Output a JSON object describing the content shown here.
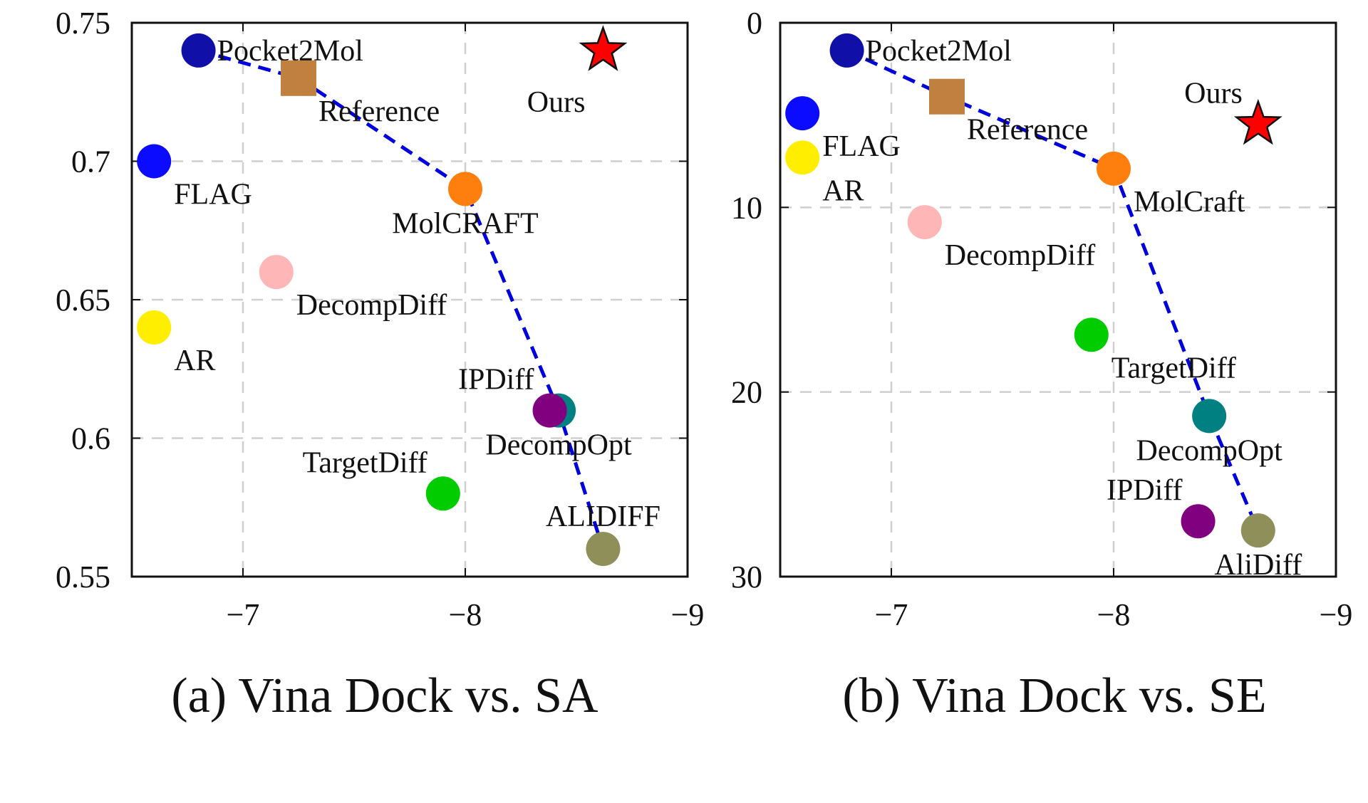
{
  "chart_data": [
    {
      "type": "scatter",
      "caption": "(a) Vina Dock vs. SA",
      "xlim": [
        -6.5,
        -9
      ],
      "ylim": [
        0.55,
        0.75
      ],
      "x_ticks": [
        -7,
        -8,
        -9
      ],
      "x_tick_labels": [
        "−7",
        "−8",
        "−9"
      ],
      "y_ticks": [
        0.55,
        0.6,
        0.65,
        0.7,
        0.75
      ],
      "y_tick_labels": [
        "0.55",
        "0.6",
        "0.65",
        "0.7",
        "0.75"
      ],
      "grid": true,
      "points": [
        {
          "label": "Pocket2Mol",
          "x": -6.8,
          "y": 0.74,
          "color": "#1010a8",
          "shape": "circle",
          "label_pos": "right"
        },
        {
          "label": "Reference",
          "x": -7.25,
          "y": 0.73,
          "color": "#c08040",
          "shape": "square",
          "label_pos": "below-right"
        },
        {
          "label": "Ours",
          "x": -8.62,
          "y": 0.74,
          "color": "#ff0000",
          "shape": "star",
          "label_pos": "below-left"
        },
        {
          "label": "FLAG",
          "x": -6.6,
          "y": 0.7,
          "color": "#0b0bff",
          "shape": "circle",
          "label_pos": "below-right"
        },
        {
          "label": "MolCRAFT",
          "x": -8.0,
          "y": 0.69,
          "color": "#ff7f0e",
          "shape": "circle",
          "label_pos": "below"
        },
        {
          "label": "DecompDiff",
          "x": -7.15,
          "y": 0.66,
          "color": "#ffb6b6",
          "shape": "circle",
          "label_pos": "below-right"
        },
        {
          "label": "AR",
          "x": -6.6,
          "y": 0.64,
          "color": "#ffee00",
          "shape": "circle",
          "label_pos": "below-right"
        },
        {
          "label": "DecompOpt",
          "x": -8.42,
          "y": 0.61,
          "color": "#008080",
          "shape": "circle",
          "label_pos": "below"
        },
        {
          "label": "IPDiff",
          "x": -8.38,
          "y": 0.61,
          "color": "#800080",
          "shape": "circle",
          "label_pos": "above-left"
        },
        {
          "label": "TargetDiff",
          "x": -7.9,
          "y": 0.58,
          "color": "#00cc00",
          "shape": "circle",
          "label_pos": "above-left"
        },
        {
          "label": "ALIDIFF",
          "x": -8.62,
          "y": 0.56,
          "color": "#8f8f5a",
          "shape": "circle",
          "label_pos": "above"
        }
      ],
      "frontier": {
        "x": [
          -6.8,
          -7.25,
          -8.0,
          -8.42,
          -8.62
        ],
        "y": [
          0.74,
          0.73,
          0.69,
          0.61,
          0.56
        ],
        "color": "#0000dd",
        "style": "dashed"
      }
    },
    {
      "type": "scatter",
      "caption": "(b) Vina Dock vs. SE",
      "xlim": [
        -6.5,
        -9
      ],
      "ylim": [
        0,
        30
      ],
      "y_inverted": true,
      "x_ticks": [
        -7,
        -8,
        -9
      ],
      "x_tick_labels": [
        "−7",
        "−8",
        "−9"
      ],
      "y_ticks": [
        0,
        10,
        20,
        30
      ],
      "y_tick_labels": [
        "0",
        "10",
        "20",
        "30"
      ],
      "grid": true,
      "points": [
        {
          "label": "Pocket2Mol",
          "x": -6.8,
          "y": 1.5,
          "color": "#1010a8",
          "shape": "circle",
          "label_pos": "right"
        },
        {
          "label": "Reference",
          "x": -7.25,
          "y": 4.0,
          "color": "#c08040",
          "shape": "square",
          "label_pos": "below-right"
        },
        {
          "label": "Ours",
          "x": -8.65,
          "y": 5.5,
          "color": "#ff0000",
          "shape": "star",
          "label_pos": "above-left"
        },
        {
          "label": "FLAG",
          "x": -6.6,
          "y": 4.9,
          "color": "#0b0bff",
          "shape": "circle",
          "label_pos": "below-right"
        },
        {
          "label": "AR",
          "x": -6.6,
          "y": 7.3,
          "color": "#ffee00",
          "shape": "circle",
          "label_pos": "below-right"
        },
        {
          "label": "MolCraft",
          "x": -8.0,
          "y": 7.9,
          "color": "#ff7f0e",
          "shape": "circle",
          "label_pos": "below-right"
        },
        {
          "label": "DecompDiff",
          "x": -7.15,
          "y": 10.8,
          "color": "#ffb6b6",
          "shape": "circle",
          "label_pos": "below-right"
        },
        {
          "label": "TargetDiff",
          "x": -7.9,
          "y": 16.9,
          "color": "#00cc00",
          "shape": "circle",
          "label_pos": "below-right"
        },
        {
          "label": "DecompOpt",
          "x": -8.43,
          "y": 21.3,
          "color": "#008080",
          "shape": "circle",
          "label_pos": "below"
        },
        {
          "label": "IPDiff",
          "x": -8.38,
          "y": 27.0,
          "color": "#800080",
          "shape": "circle",
          "label_pos": "above-left"
        },
        {
          "label": "AliDiff",
          "x": -8.65,
          "y": 27.5,
          "color": "#8f8f5a",
          "shape": "circle",
          "label_pos": "below"
        }
      ],
      "frontier": {
        "x": [
          -6.8,
          -7.25,
          -8.0,
          -8.43,
          -8.65
        ],
        "y": [
          1.5,
          4.0,
          7.9,
          21.3,
          27.5
        ],
        "color": "#0000dd",
        "style": "dashed"
      }
    }
  ]
}
